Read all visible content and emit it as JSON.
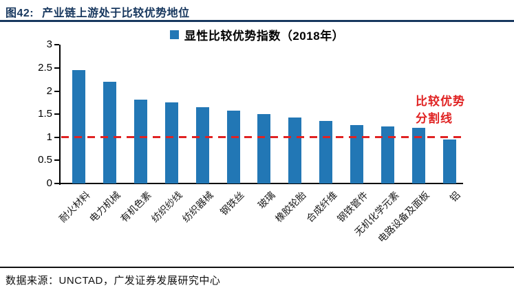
{
  "header": {
    "title_prefix": "图42:",
    "title_text": "产业链上游处于比较优势地位"
  },
  "legend": {
    "label": "显性比较优势指数（2018年）"
  },
  "annotation": {
    "line1": "比较优势",
    "line2": "分割线"
  },
  "footer": {
    "source_text": "数据来源：UNCTAD，广发证券发展研究中心"
  },
  "colors": {
    "bar": "#2277B5",
    "title_navy": "#17375E",
    "reference_red": "#E02222",
    "axis": "#000000"
  },
  "chart_data": {
    "type": "bar",
    "title": "显性比较优势指数（2018年）",
    "categories": [
      "耐火材料",
      "电力机械",
      "有机色素",
      "纺织纱线",
      "纺织器械",
      "钢铁丝",
      "玻璃",
      "橡胶轮胎",
      "合成纤维",
      "钢铁管件",
      "无机化学元素",
      "电路设备及面板",
      "铝"
    ],
    "values": [
      2.45,
      2.2,
      1.82,
      1.76,
      1.65,
      1.58,
      1.5,
      1.43,
      1.36,
      1.27,
      1.24,
      1.2,
      0.95
    ],
    "xlabel": "",
    "ylabel": "",
    "ylim": [
      0,
      3
    ],
    "yticks": [
      0,
      0.5,
      1,
      1.5,
      2,
      2.5,
      3
    ],
    "grid": false,
    "legend_position": "top-center",
    "reference_line": {
      "value": 1,
      "label": "比较优势分割线",
      "style": "dashed",
      "color": "#E02222"
    }
  }
}
